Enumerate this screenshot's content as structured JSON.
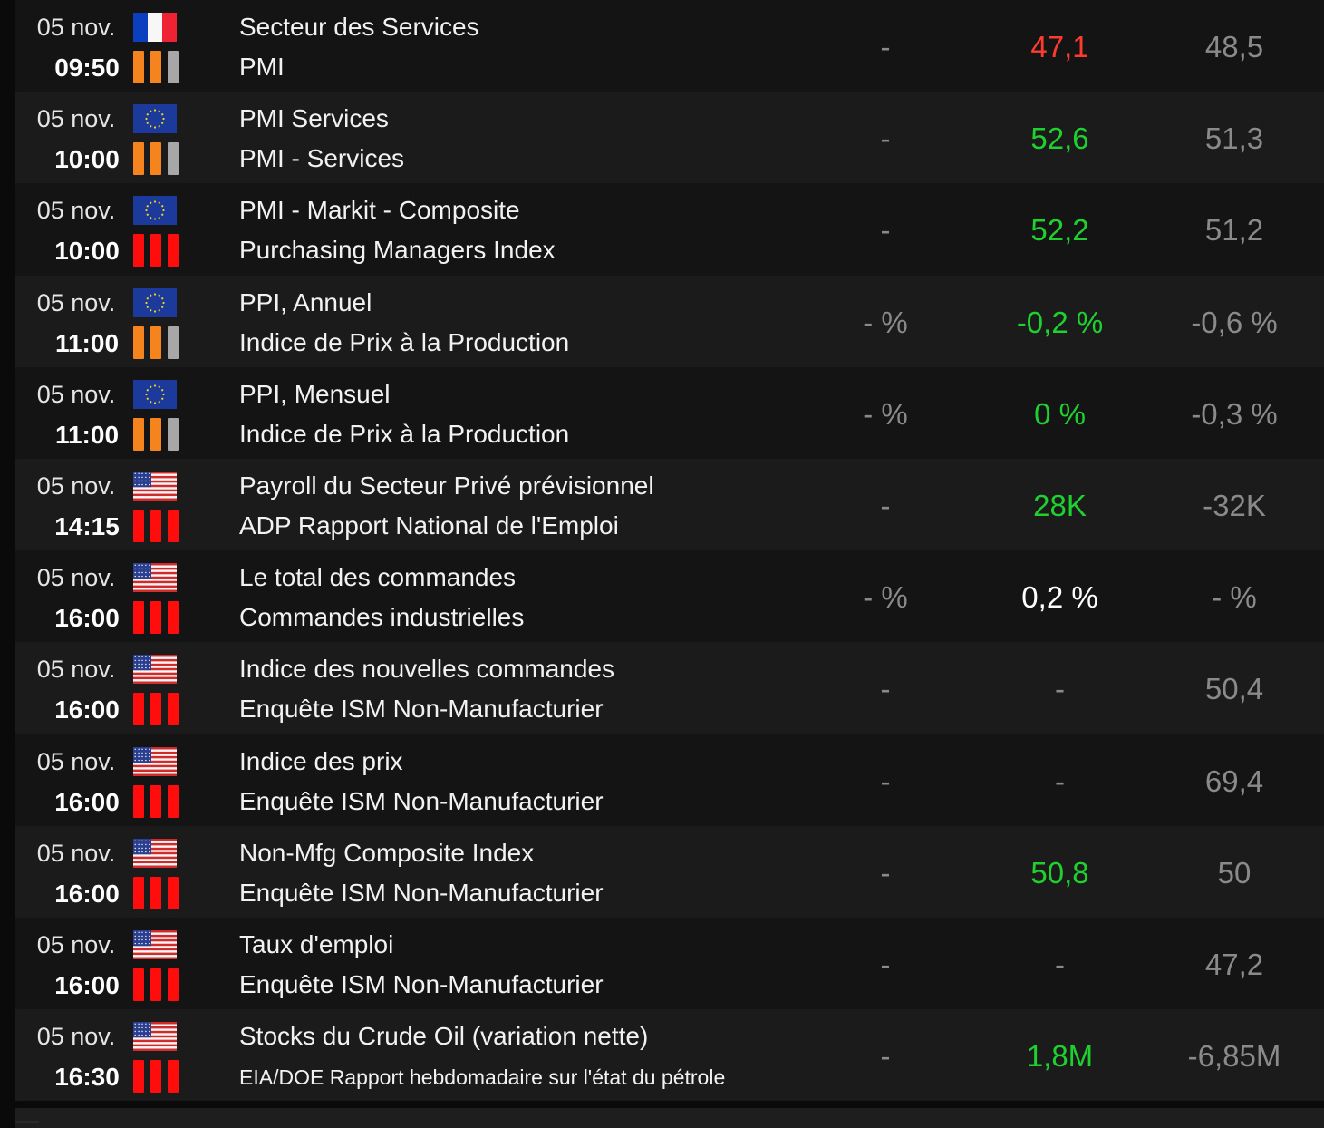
{
  "colors": {
    "red": "#ff3b30",
    "green": "#1ed12e",
    "white": "#ffffff",
    "grey": "#8a8a8a",
    "impact_high": "#ff0d0d",
    "impact_med": "#f5841f",
    "impact_off": "#a7a7a7"
  },
  "events": [
    {
      "date": "05 nov.",
      "time": "09:50",
      "flag": "fr-flag-icon",
      "impact": 2,
      "title": "Secteur des Services",
      "subtitle": "PMI",
      "previous": "-",
      "actual": "47,1",
      "actual_color": "red",
      "forecast": "48,5"
    },
    {
      "date": "05 nov.",
      "time": "10:00",
      "flag": "eu-flag-icon",
      "impact": 2,
      "title": "PMI Services",
      "subtitle": "PMI - Services",
      "previous": "-",
      "actual": "52,6",
      "actual_color": "green",
      "forecast": "51,3"
    },
    {
      "date": "05 nov.",
      "time": "10:00",
      "flag": "eu-flag-icon",
      "impact": 3,
      "title": "PMI - Markit - Composite",
      "subtitle": "Purchasing Managers Index",
      "previous": "-",
      "actual": "52,2",
      "actual_color": "green",
      "forecast": "51,2"
    },
    {
      "date": "05 nov.",
      "time": "11:00",
      "flag": "eu-flag-icon",
      "impact": 2,
      "title": "PPI, Annuel",
      "subtitle": "Indice de Prix à la Production",
      "previous": "- %",
      "actual": "-0,2 %",
      "actual_color": "green",
      "forecast": "-0,6 %"
    },
    {
      "date": "05 nov.",
      "time": "11:00",
      "flag": "eu-flag-icon",
      "impact": 2,
      "title": "PPI, Mensuel",
      "subtitle": "Indice de Prix à la Production",
      "previous": "- %",
      "actual": "0 %",
      "actual_color": "green",
      "forecast": "-0,3 %"
    },
    {
      "date": "05 nov.",
      "time": "14:15",
      "flag": "us-flag-icon",
      "impact": 3,
      "title": "Payroll du Secteur Privé prévisionnel",
      "subtitle": "ADP Rapport National de l'Emploi",
      "previous": "-",
      "actual": "28K",
      "actual_color": "green",
      "forecast": "-32K"
    },
    {
      "date": "05 nov.",
      "time": "16:00",
      "flag": "us-flag-icon",
      "impact": 3,
      "title": "Le total des commandes",
      "subtitle": "Commandes industrielles",
      "previous": "- %",
      "actual": "0,2 %",
      "actual_color": "white",
      "forecast": "- %"
    },
    {
      "date": "05 nov.",
      "time": "16:00",
      "flag": "us-flag-icon",
      "impact": 3,
      "title": "Indice des nouvelles commandes",
      "subtitle": "Enquête ISM Non-Manufacturier",
      "previous": "-",
      "actual": "-",
      "actual_color": "grey",
      "forecast": "50,4"
    },
    {
      "date": "05 nov.",
      "time": "16:00",
      "flag": "us-flag-icon",
      "impact": 3,
      "title": "Indice des prix",
      "subtitle": "Enquête ISM Non-Manufacturier",
      "previous": "-",
      "actual": "-",
      "actual_color": "grey",
      "forecast": "69,4"
    },
    {
      "date": "05 nov.",
      "time": "16:00",
      "flag": "us-flag-icon",
      "impact": 3,
      "title": "Non-Mfg Composite Index",
      "subtitle": "Enquête ISM Non-Manufacturier",
      "previous": "-",
      "actual": "50,8",
      "actual_color": "green",
      "forecast": "50"
    },
    {
      "date": "05 nov.",
      "time": "16:00",
      "flag": "us-flag-icon",
      "impact": 3,
      "title": "Taux d'emploi",
      "subtitle": "Enquête ISM Non-Manufacturier",
      "previous": "-",
      "actual": "-",
      "actual_color": "grey",
      "forecast": "47,2"
    },
    {
      "date": "05 nov.",
      "time": "16:30",
      "flag": "us-flag-icon",
      "impact": 3,
      "title": "Stocks du Crude Oil (variation nette)",
      "subtitle": "EIA/DOE Rapport hebdomadaire sur l'état du pétrole",
      "previous": "-",
      "actual": "1,8M",
      "actual_color": "green",
      "forecast": "-6,85M"
    }
  ]
}
